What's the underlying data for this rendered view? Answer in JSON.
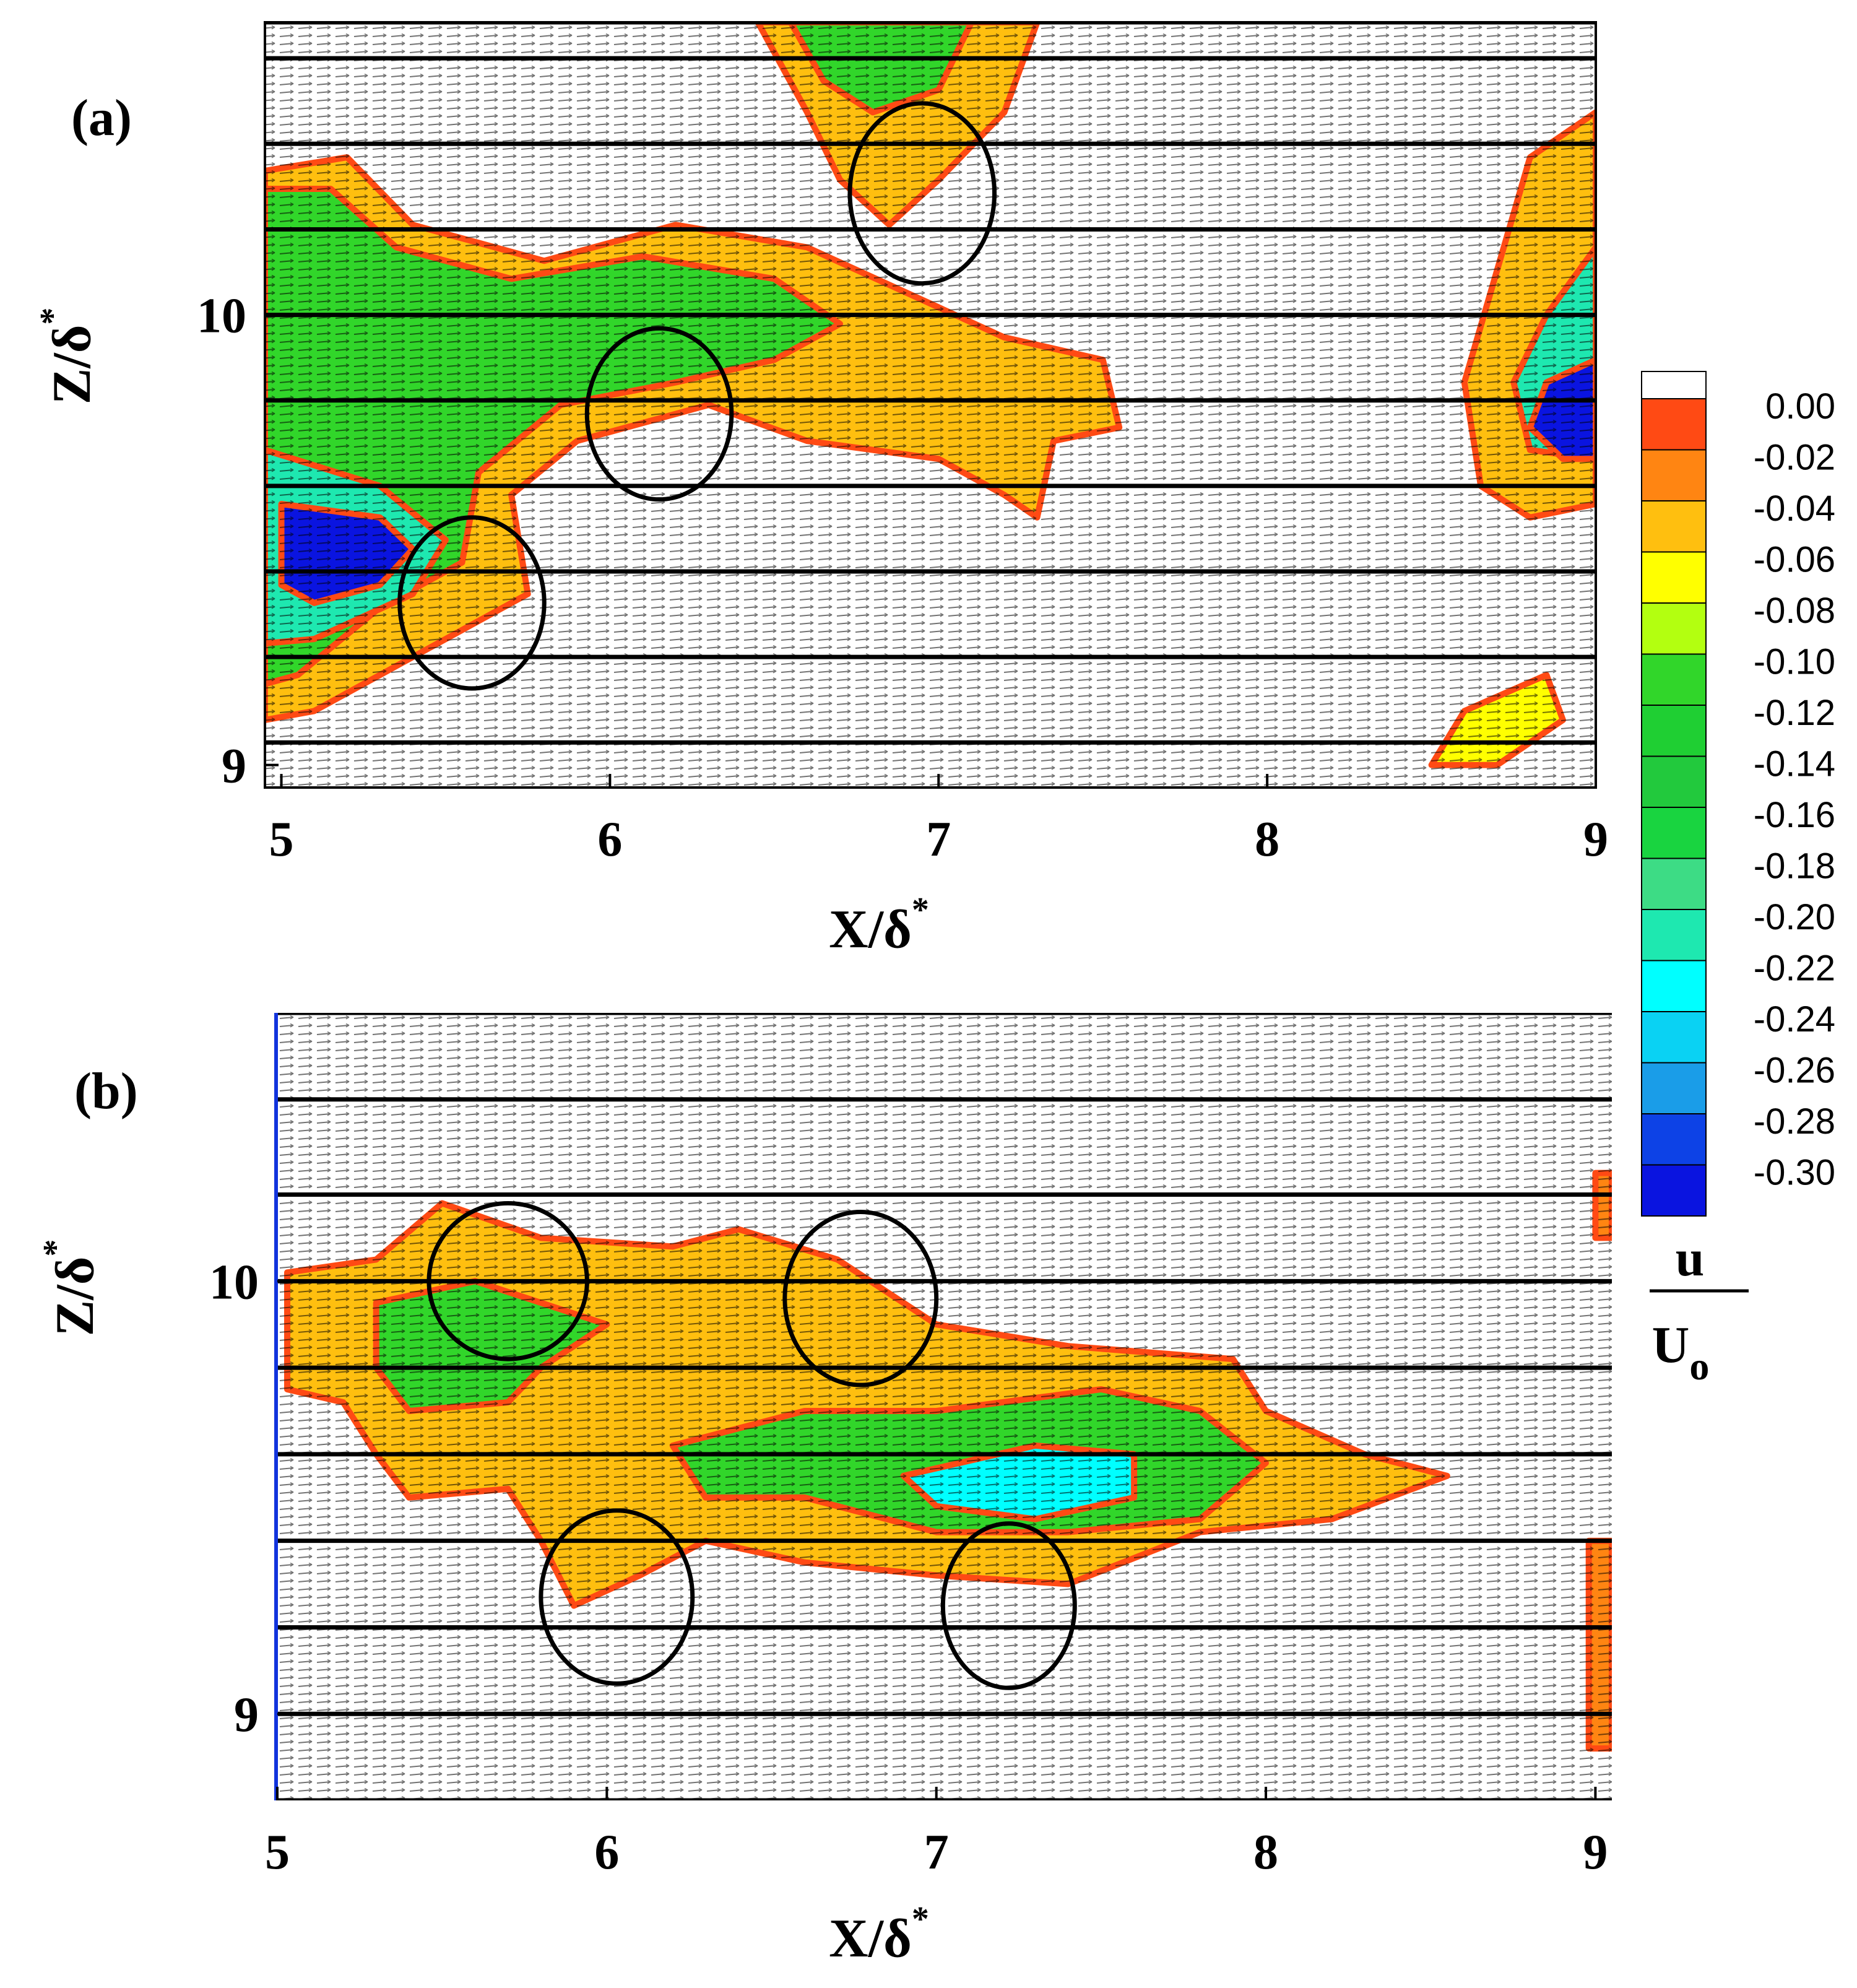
{
  "chart_data": [
    {
      "type": "heatmap",
      "panel_label": "(a)",
      "xlabel": "X/δ",
      "xlabel_sup": "*",
      "ylabel": "Z/δ",
      "ylabel_sup": "*",
      "xlim": [
        4.95,
        9.0
      ],
      "ylim": [
        8.95,
        10.65
      ],
      "x_ticks": [
        5,
        6,
        7,
        8,
        9
      ],
      "x_tick_labels": [
        "5",
        "6",
        "7",
        "8",
        "9"
      ],
      "y_ticks": [
        9,
        10
      ],
      "y_tick_labels": [
        "9",
        "10"
      ],
      "horizontal_lines_z": [
        9.05,
        9.24,
        9.43,
        9.62,
        9.81,
        10.0,
        10.19,
        10.38,
        10.57,
        10.65
      ],
      "regions": [
        {
          "value": -0.04,
          "points": [
            [
              4.95,
              10.32
            ],
            [
              5.2,
              10.35
            ],
            [
              5.4,
              10.2
            ],
            [
              5.8,
              10.12
            ],
            [
              6.2,
              10.2
            ],
            [
              6.6,
              10.15
            ],
            [
              6.9,
              10.05
            ],
            [
              7.2,
              9.95
            ],
            [
              7.5,
              9.9
            ],
            [
              7.55,
              9.75
            ],
            [
              7.35,
              9.72
            ],
            [
              7.3,
              9.55
            ],
            [
              7.2,
              9.6
            ],
            [
              7.0,
              9.68
            ],
            [
              6.6,
              9.72
            ],
            [
              6.3,
              9.8
            ],
            [
              5.9,
              9.72
            ],
            [
              5.7,
              9.6
            ],
            [
              5.75,
              9.38
            ],
            [
              5.5,
              9.28
            ],
            [
              5.3,
              9.2
            ],
            [
              5.1,
              9.12
            ],
            [
              4.95,
              9.1
            ]
          ]
        },
        {
          "value": -0.1,
          "points": [
            [
              4.95,
              10.28
            ],
            [
              5.15,
              10.28
            ],
            [
              5.35,
              10.15
            ],
            [
              5.7,
              10.08
            ],
            [
              6.1,
              10.13
            ],
            [
              6.5,
              10.08
            ],
            [
              6.7,
              9.98
            ],
            [
              6.5,
              9.9
            ],
            [
              6.2,
              9.85
            ],
            [
              5.85,
              9.8
            ],
            [
              5.6,
              9.65
            ],
            [
              5.55,
              9.45
            ],
            [
              5.3,
              9.35
            ],
            [
              5.05,
              9.2
            ],
            [
              4.95,
              9.18
            ]
          ]
        },
        {
          "value": -0.2,
          "points": [
            [
              4.95,
              9.7
            ],
            [
              5.3,
              9.62
            ],
            [
              5.5,
              9.5
            ],
            [
              5.4,
              9.38
            ],
            [
              5.1,
              9.28
            ],
            [
              4.95,
              9.27
            ]
          ]
        },
        {
          "value": -0.3,
          "points": [
            [
              5.0,
              9.58
            ],
            [
              5.3,
              9.55
            ],
            [
              5.4,
              9.48
            ],
            [
              5.3,
              9.4
            ],
            [
              5.1,
              9.36
            ],
            [
              5.0,
              9.4
            ]
          ]
        },
        {
          "value": -0.04,
          "points": [
            [
              6.45,
              10.65
            ],
            [
              7.3,
              10.65
            ],
            [
              7.2,
              10.45
            ],
            [
              7.0,
              10.3
            ],
            [
              6.85,
              10.2
            ],
            [
              6.7,
              10.3
            ],
            [
              6.6,
              10.45
            ]
          ]
        },
        {
          "value": -0.1,
          "points": [
            [
              6.55,
              10.65
            ],
            [
              7.1,
              10.65
            ],
            [
              7.0,
              10.5
            ],
            [
              6.8,
              10.45
            ],
            [
              6.65,
              10.52
            ]
          ]
        },
        {
          "value": -0.04,
          "points": [
            [
              9.0,
              10.45
            ],
            [
              8.8,
              10.35
            ],
            [
              8.7,
              10.1
            ],
            [
              8.6,
              9.85
            ],
            [
              8.65,
              9.62
            ],
            [
              8.8,
              9.55
            ],
            [
              9.0,
              9.58
            ]
          ]
        },
        {
          "value": -0.2,
          "points": [
            [
              9.0,
              10.15
            ],
            [
              8.85,
              10.0
            ],
            [
              8.75,
              9.85
            ],
            [
              8.8,
              9.7
            ],
            [
              9.0,
              9.68
            ]
          ]
        },
        {
          "value": -0.3,
          "points": [
            [
              9.0,
              9.9
            ],
            [
              8.85,
              9.85
            ],
            [
              8.8,
              9.75
            ],
            [
              8.9,
              9.68
            ],
            [
              9.0,
              9.68
            ]
          ]
        },
        {
          "value": -0.06,
          "points": [
            [
              8.5,
              9.0
            ],
            [
              8.6,
              9.12
            ],
            [
              8.85,
              9.2
            ],
            [
              8.9,
              9.1
            ],
            [
              8.7,
              9.0
            ]
          ]
        }
      ],
      "circles": [
        {
          "x": 6.95,
          "z": 10.27,
          "rx": 0.22,
          "rz": 0.2
        },
        {
          "x": 6.15,
          "z": 9.78,
          "rx": 0.22,
          "rz": 0.19
        },
        {
          "x": 5.58,
          "z": 9.36,
          "rx": 0.22,
          "rz": 0.19
        }
      ]
    },
    {
      "type": "heatmap",
      "panel_label": "(b)",
      "xlabel": "X/δ",
      "xlabel_sup": "*",
      "ylabel": "Z/δ",
      "ylabel_sup": "*",
      "xlim": [
        5.0,
        9.05
      ],
      "ylim": [
        8.8,
        10.62
      ],
      "x_ticks": [
        5,
        6,
        7,
        8,
        9
      ],
      "x_tick_labels": [
        "5",
        "6",
        "7",
        "8",
        "9"
      ],
      "y_ticks": [
        9,
        10
      ],
      "y_tick_labels": [
        "9",
        "10"
      ],
      "horizontal_lines_z": [
        8.8,
        9.0,
        9.2,
        9.4,
        9.6,
        9.8,
        10.0,
        10.2,
        10.42,
        10.62
      ],
      "regions": [
        {
          "value": -0.04,
          "points": [
            [
              5.03,
              10.02
            ],
            [
              5.3,
              10.05
            ],
            [
              5.5,
              10.18
            ],
            [
              5.8,
              10.1
            ],
            [
              6.2,
              10.08
            ],
            [
              6.4,
              10.12
            ],
            [
              6.7,
              10.05
            ],
            [
              7.0,
              9.9
            ],
            [
              7.4,
              9.85
            ],
            [
              7.9,
              9.82
            ],
            [
              8.0,
              9.7
            ],
            [
              8.3,
              9.6
            ],
            [
              8.55,
              9.55
            ],
            [
              8.2,
              9.45
            ],
            [
              7.8,
              9.42
            ],
            [
              7.4,
              9.3
            ],
            [
              7.0,
              9.32
            ],
            [
              6.6,
              9.35
            ],
            [
              6.3,
              9.4
            ],
            [
              6.1,
              9.32
            ],
            [
              5.9,
              9.25
            ],
            [
              5.8,
              9.4
            ],
            [
              5.7,
              9.52
            ],
            [
              5.4,
              9.5
            ],
            [
              5.3,
              9.6
            ],
            [
              5.2,
              9.72
            ],
            [
              5.03,
              9.75
            ]
          ]
        },
        {
          "value": -0.1,
          "points": [
            [
              5.3,
              9.95
            ],
            [
              5.6,
              10.0
            ],
            [
              5.8,
              9.95
            ],
            [
              6.0,
              9.9
            ],
            [
              5.8,
              9.8
            ],
            [
              5.7,
              9.72
            ],
            [
              5.4,
              9.7
            ],
            [
              5.3,
              9.8
            ]
          ]
        },
        {
          "value": -0.1,
          "points": [
            [
              6.2,
              9.62
            ],
            [
              6.6,
              9.7
            ],
            [
              7.0,
              9.7
            ],
            [
              7.5,
              9.75
            ],
            [
              7.8,
              9.7
            ],
            [
              8.0,
              9.58
            ],
            [
              7.8,
              9.45
            ],
            [
              7.4,
              9.42
            ],
            [
              7.0,
              9.42
            ],
            [
              6.6,
              9.5
            ],
            [
              6.3,
              9.5
            ]
          ]
        },
        {
          "value": -0.22,
          "points": [
            [
              6.9,
              9.55
            ],
            [
              7.3,
              9.62
            ],
            [
              7.6,
              9.6
            ],
            [
              7.6,
              9.5
            ],
            [
              7.3,
              9.45
            ],
            [
              7.0,
              9.48
            ]
          ]
        },
        {
          "value": -0.02,
          "points": [
            [
              8.98,
              9.4
            ],
            [
              9.05,
              9.4
            ],
            [
              9.05,
              8.92
            ],
            [
              8.98,
              8.92
            ]
          ]
        },
        {
          "value": -0.02,
          "points": [
            [
              9.0,
              10.25
            ],
            [
              9.05,
              10.25
            ],
            [
              9.05,
              10.1
            ],
            [
              9.0,
              10.1
            ]
          ]
        }
      ],
      "circles": [
        {
          "x": 5.7,
          "z": 10.0,
          "rx": 0.24,
          "rz": 0.18
        },
        {
          "x": 6.77,
          "z": 9.96,
          "rx": 0.23,
          "rz": 0.2
        },
        {
          "x": 6.03,
          "z": 9.27,
          "rx": 0.23,
          "rz": 0.2
        },
        {
          "x": 7.22,
          "z": 9.25,
          "rx": 0.2,
          "rz": 0.19
        }
      ]
    }
  ],
  "colorbar": {
    "title_numerator": "u",
    "title_denominator": "U",
    "title_denominator_sub": "o",
    "levels": [
      {
        "label": "0.00",
        "color": "#ff4a14"
      },
      {
        "label": "-0.02",
        "color": "#ff8512"
      },
      {
        "label": "-0.04",
        "color": "#ffbf0f"
      },
      {
        "label": "-0.06",
        "color": "#ffff00"
      },
      {
        "label": "-0.08",
        "color": "#b3ff10"
      },
      {
        "label": "-0.10",
        "color": "#31d62a"
      },
      {
        "label": "-0.12",
        "color": "#1fcf33"
      },
      {
        "label": "-0.14",
        "color": "#22c93d"
      },
      {
        "label": "-0.16",
        "color": "#19d440"
      },
      {
        "label": "-0.18",
        "color": "#3ddc85"
      },
      {
        "label": "-0.20",
        "color": "#1ee8b0"
      },
      {
        "label": "-0.22",
        "color": "#00ffff"
      },
      {
        "label": "-0.24",
        "color": "#0ad2f3"
      },
      {
        "label": "-0.26",
        "color": "#1a9de8"
      },
      {
        "label": "-0.28",
        "color": "#0d42e6"
      },
      {
        "label": "-0.30",
        "color": "#0a14e0"
      }
    ]
  }
}
